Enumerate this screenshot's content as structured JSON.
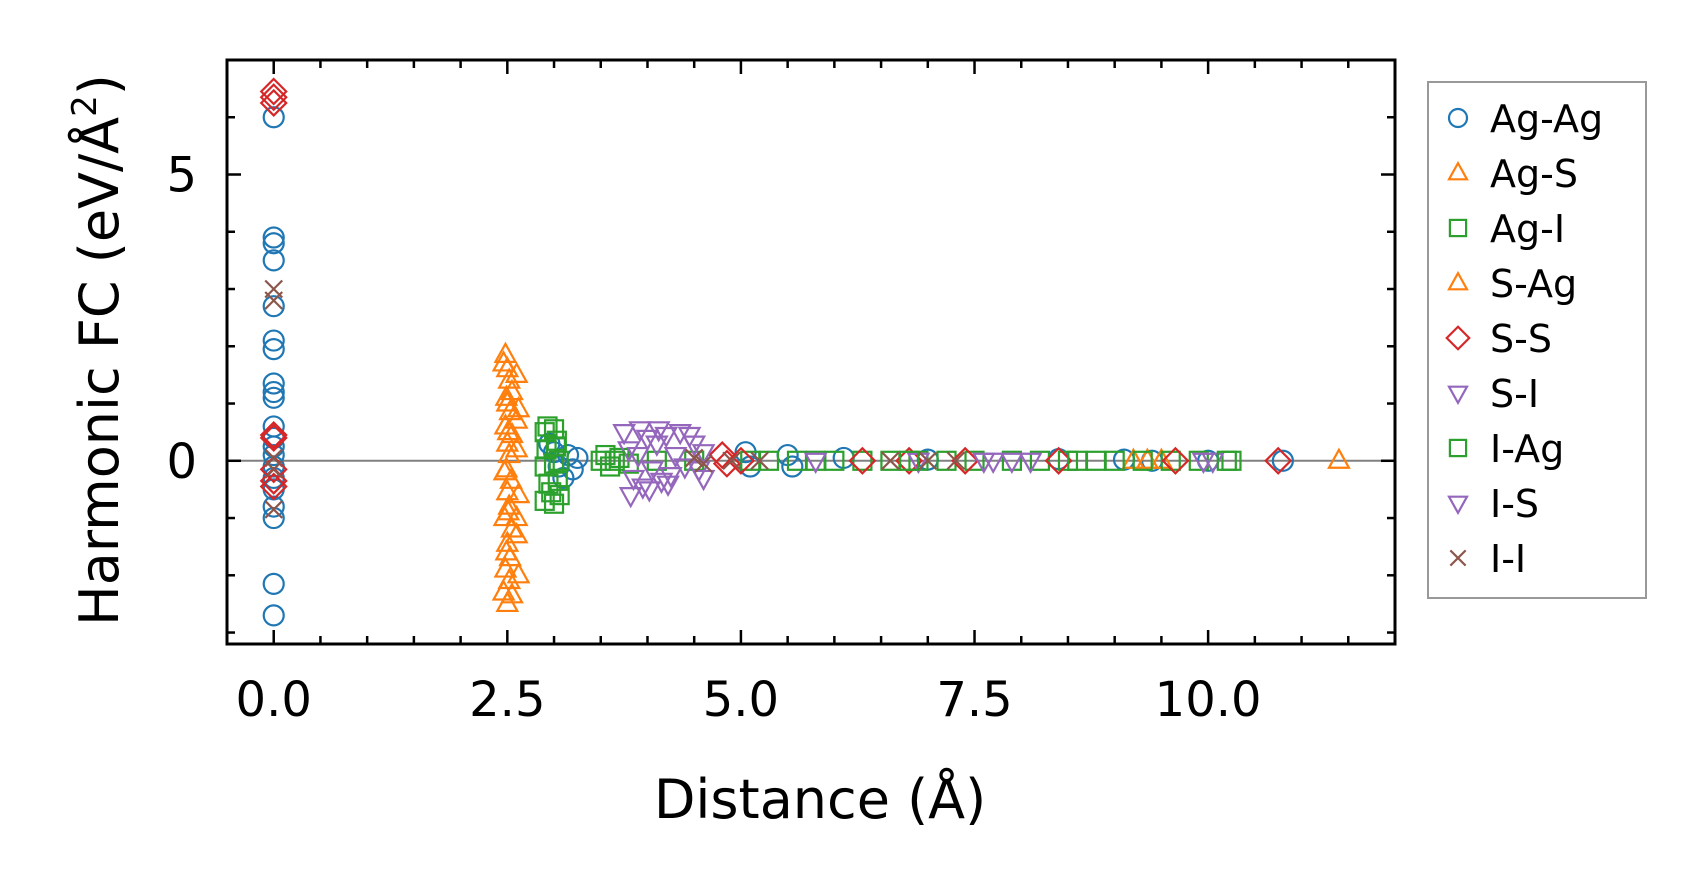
{
  "chart_data": {
    "type": "scatter",
    "xlabel": "Distance (Å)",
    "ylabel_main": "Harmonic FC (eV/Å",
    "ylabel_sup": "2",
    "ylabel_close": ")",
    "xlim": [
      -0.5,
      12.0
    ],
    "ylim": [
      -3.2,
      7.0
    ],
    "xticks": [
      0.0,
      2.5,
      5.0,
      7.5,
      10.0
    ],
    "xtick_labels": [
      "0.0",
      "2.5",
      "5.0",
      "7.5",
      "10.0"
    ],
    "yticks": [
      0,
      5
    ],
    "ytick_labels": [
      "0",
      "5"
    ],
    "zero_line": true,
    "legend_position": "outside-right",
    "series": [
      {
        "name": "Ag-Ag",
        "marker": "circle",
        "color": "#1f77b4",
        "points": [
          [
            0,
            6.0
          ],
          [
            0,
            3.9
          ],
          [
            0,
            3.8
          ],
          [
            0,
            3.5
          ],
          [
            0,
            2.7
          ],
          [
            0,
            2.1
          ],
          [
            0,
            1.95
          ],
          [
            0,
            1.35
          ],
          [
            0,
            1.2
          ],
          [
            0,
            1.1
          ],
          [
            0,
            0.6
          ],
          [
            0,
            0.4
          ],
          [
            0,
            0.25
          ],
          [
            0,
            0.1
          ],
          [
            0,
            -0.1
          ],
          [
            0,
            -0.3
          ],
          [
            0,
            -0.5
          ],
          [
            0,
            -0.8
          ],
          [
            0,
            -1.0
          ],
          [
            0,
            -2.15
          ],
          [
            0,
            -2.7
          ],
          [
            2.95,
            0.3
          ],
          [
            3.0,
            0.15
          ],
          [
            3.05,
            -0.1
          ],
          [
            3.1,
            -0.3
          ],
          [
            3.15,
            0.1
          ],
          [
            3.2,
            -0.15
          ],
          [
            3.25,
            0.05
          ],
          [
            5.05,
            0.15
          ],
          [
            5.1,
            -0.1
          ],
          [
            5.5,
            0.1
          ],
          [
            5.55,
            -0.1
          ],
          [
            6.1,
            0.05
          ],
          [
            7.0,
            0.02
          ],
          [
            8.4,
            0.03
          ],
          [
            9.1,
            0.02
          ],
          [
            9.4,
            0.0
          ],
          [
            10.0,
            0.0
          ],
          [
            10.8,
            0.0
          ]
        ]
      },
      {
        "name": "Ag-S",
        "marker": "triangle-up",
        "color": "#ff7f0e",
        "points": [
          [
            2.48,
            1.85
          ],
          [
            2.5,
            1.6
          ],
          [
            2.52,
            1.4
          ],
          [
            2.55,
            1.2
          ],
          [
            2.5,
            1.0
          ],
          [
            2.53,
            0.85
          ],
          [
            2.48,
            0.6
          ],
          [
            2.55,
            0.45
          ],
          [
            2.5,
            0.3
          ],
          [
            2.52,
            0.1
          ],
          [
            2.49,
            -0.15
          ],
          [
            2.54,
            -0.35
          ],
          [
            2.5,
            -0.55
          ],
          [
            2.52,
            -0.8
          ],
          [
            2.47,
            -1.0
          ],
          [
            2.55,
            -1.2
          ],
          [
            2.5,
            -1.45
          ],
          [
            2.53,
            -1.7
          ],
          [
            2.48,
            -1.9
          ],
          [
            2.52,
            -2.1
          ],
          [
            2.55,
            -2.35
          ],
          [
            2.5,
            -2.5
          ],
          [
            2.6,
            1.5
          ],
          [
            2.62,
            0.9
          ],
          [
            2.6,
            0.2
          ],
          [
            2.62,
            -0.6
          ],
          [
            2.6,
            -1.3
          ],
          [
            2.62,
            -2.0
          ],
          [
            9.2,
            0.0
          ],
          [
            9.35,
            0.0
          ],
          [
            9.5,
            0.0
          ],
          [
            11.4,
            0.0
          ]
        ]
      },
      {
        "name": "Ag-I",
        "marker": "square",
        "color": "#2ca02c",
        "points": [
          [
            2.9,
            0.5
          ],
          [
            2.92,
            0.2
          ],
          [
            2.9,
            -0.1
          ],
          [
            2.94,
            -0.4
          ],
          [
            2.9,
            -0.7
          ],
          [
            3.0,
            0.55
          ],
          [
            3.02,
            0.25
          ],
          [
            3.0,
            -0.05
          ],
          [
            3.04,
            -0.35
          ],
          [
            3.0,
            -0.75
          ],
          [
            3.05,
            0.0
          ],
          [
            3.55,
            0.1
          ],
          [
            3.6,
            -0.1
          ],
          [
            3.7,
            0.05
          ],
          [
            3.8,
            -0.05
          ],
          [
            4.1,
            0.0
          ],
          [
            4.5,
            0.0
          ],
          [
            5.1,
            0.0
          ],
          [
            5.6,
            0.0
          ],
          [
            5.8,
            0.0
          ],
          [
            6.0,
            0.0
          ],
          [
            6.3,
            0.0
          ],
          [
            6.6,
            0.0
          ],
          [
            6.9,
            0.0
          ],
          [
            7.2,
            0.0
          ],
          [
            7.5,
            0.0
          ],
          [
            7.9,
            0.0
          ],
          [
            8.2,
            0.0
          ],
          [
            8.5,
            0.0
          ],
          [
            8.8,
            0.0
          ],
          [
            9.0,
            0.0
          ],
          [
            9.3,
            0.0
          ],
          [
            9.6,
            0.0
          ],
          [
            9.9,
            0.0
          ],
          [
            10.25,
            0.0
          ]
        ]
      },
      {
        "name": "S-Ag",
        "marker": "triangle-up",
        "color": "#ff7f0e",
        "points": [
          [
            2.46,
            1.7
          ],
          [
            2.49,
            1.1
          ],
          [
            2.51,
            0.5
          ],
          [
            2.47,
            -0.2
          ],
          [
            2.51,
            -0.9
          ],
          [
            2.49,
            -1.6
          ],
          [
            2.46,
            -2.3
          ],
          [
            2.6,
            0.7
          ],
          [
            2.6,
            -1.0
          ]
        ]
      },
      {
        "name": "S-S",
        "marker": "diamond",
        "color": "#d62728",
        "points": [
          [
            0,
            6.45
          ],
          [
            0,
            6.35
          ],
          [
            0,
            6.25
          ],
          [
            0,
            0.45
          ],
          [
            0,
            0.4
          ],
          [
            0,
            -0.15
          ],
          [
            0,
            -0.35
          ],
          [
            0,
            -0.45
          ],
          [
            4.8,
            0.1
          ],
          [
            4.85,
            -0.05
          ],
          [
            5.0,
            0.0
          ],
          [
            6.3,
            0.0
          ],
          [
            6.8,
            0.0
          ],
          [
            7.4,
            0.0
          ],
          [
            8.4,
            0.0
          ],
          [
            9.65,
            0.0
          ],
          [
            10.75,
            0.0
          ]
        ]
      },
      {
        "name": "S-I",
        "marker": "triangle-down",
        "color": "#9467bd",
        "points": [
          [
            3.75,
            0.5
          ],
          [
            3.8,
            0.2
          ],
          [
            3.85,
            -0.3
          ],
          [
            3.9,
            0.1
          ],
          [
            3.95,
            -0.45
          ],
          [
            4.0,
            0.4
          ],
          [
            4.05,
            -0.15
          ],
          [
            4.1,
            0.3
          ],
          [
            4.15,
            -0.35
          ],
          [
            4.2,
            0.45
          ],
          [
            4.25,
            -0.25
          ],
          [
            4.3,
            0.1
          ],
          [
            4.35,
            0.5
          ],
          [
            4.4,
            -0.1
          ],
          [
            4.5,
            0.3
          ],
          [
            4.55,
            -0.15
          ],
          [
            4.6,
            0.15
          ],
          [
            5.8,
            0.0
          ],
          [
            6.9,
            0.0
          ],
          [
            7.6,
            0.0
          ],
          [
            7.9,
            0.0
          ],
          [
            8.1,
            0.0
          ],
          [
            10.05,
            0.0
          ]
        ]
      },
      {
        "name": "I-Ag",
        "marker": "square",
        "color": "#2ca02c",
        "points": [
          [
            2.93,
            0.6
          ],
          [
            2.97,
            -0.55
          ],
          [
            3.03,
            0.35
          ],
          [
            3.06,
            -0.6
          ],
          [
            3.5,
            0.0
          ],
          [
            3.65,
            0.0
          ],
          [
            5.3,
            0.0
          ],
          [
            6.8,
            0.0
          ],
          [
            8.6,
            0.0
          ],
          [
            10.2,
            0.0
          ]
        ]
      },
      {
        "name": "I-S",
        "marker": "triangle-down",
        "color": "#9467bd",
        "points": [
          [
            3.82,
            -0.6
          ],
          [
            3.92,
            0.55
          ],
          [
            4.02,
            -0.5
          ],
          [
            4.12,
            0.55
          ],
          [
            4.22,
            -0.4
          ],
          [
            4.45,
            0.45
          ],
          [
            4.6,
            -0.3
          ],
          [
            7.7,
            0.0
          ],
          [
            9.95,
            0.0
          ]
        ]
      },
      {
        "name": "I-I",
        "marker": "x",
        "color": "#8c564b",
        "points": [
          [
            0,
            3.0
          ],
          [
            0,
            2.8
          ],
          [
            0,
            0.05
          ],
          [
            0,
            -0.15
          ],
          [
            0,
            -0.85
          ],
          [
            4.5,
            0.05
          ],
          [
            4.6,
            -0.05
          ],
          [
            4.9,
            0.0
          ],
          [
            5.2,
            0.0
          ],
          [
            6.6,
            0.0
          ],
          [
            7.0,
            0.0
          ],
          [
            7.3,
            0.0
          ]
        ]
      }
    ]
  }
}
